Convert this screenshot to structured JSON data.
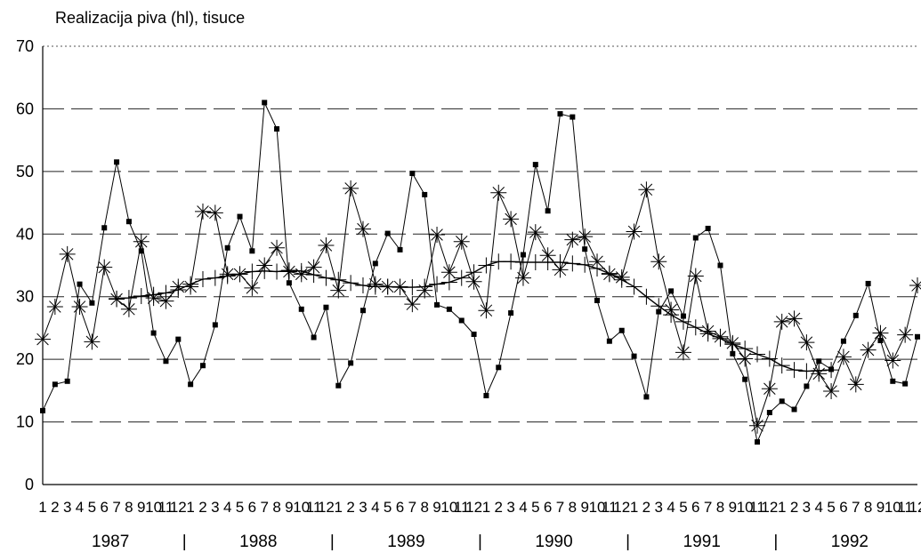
{
  "chart_data": {
    "type": "line",
    "title": "Realizacija piva (hl), tisuce",
    "xlabel": "",
    "ylabel": "",
    "ylim": [
      0,
      70
    ],
    "yticks": [
      0,
      10,
      20,
      30,
      40,
      50,
      60,
      70
    ],
    "grid": "horizontal-dashed",
    "legend": "none",
    "month_labels": [
      "1",
      "2",
      "3",
      "4",
      "5",
      "6",
      "7",
      "8",
      "9",
      "10",
      "11",
      "12"
    ],
    "years": [
      "1987",
      "1988",
      "1989",
      "1990",
      "1991",
      "1992"
    ],
    "year_separator": "|",
    "series": [
      {
        "marker": "square",
        "color": "#000000",
        "values": [
          11.8,
          16,
          16.5,
          32,
          29,
          41,
          51.5,
          42,
          37.3,
          24.2,
          19.7,
          23.2,
          16,
          19,
          25.5,
          37.8,
          42.8,
          37.3,
          61,
          56.8,
          32.2,
          28,
          23.5,
          28.3,
          15.8,
          19.4,
          27.8,
          35.3,
          40.1,
          37.5,
          49.7,
          46.3,
          28.7,
          28,
          26.2,
          24,
          14.2,
          18.7,
          27.4,
          36.7,
          51.1,
          43.7,
          59.2,
          58.7,
          37.6,
          29.4,
          22.9,
          24.6,
          20.5,
          14,
          27.6,
          30.9,
          26.9,
          39.4,
          40.9,
          35,
          20.9,
          16.8,
          6.8,
          11.5,
          13.3,
          12,
          15.7,
          19.7,
          18.4,
          22.9,
          27,
          32.1,
          23,
          16.5,
          16.1,
          23.6
        ]
      },
      {
        "marker": "star",
        "color": "#000000",
        "values": [
          23.2,
          28.4,
          36.8,
          28.4,
          22.8,
          34.7,
          29.6,
          28,
          38.8,
          29.8,
          29.3,
          31.6,
          31.6,
          43.6,
          43.4,
          33.6,
          33.6,
          31.4,
          35,
          37.8,
          34,
          33.6,
          34.7,
          38.2,
          31,
          47.3,
          40.8,
          32,
          31.6,
          31.6,
          28.8,
          31,
          39.9,
          33.9,
          38.8,
          32.4,
          27.8,
          46.6,
          42.4,
          33,
          40.3,
          36.6,
          34.3,
          39.1,
          39.6,
          35.6,
          33.6,
          33.1,
          40.4,
          47.1,
          35.6,
          27.9,
          21.1,
          33.3,
          24.5,
          23.6,
          22.6,
          20.1,
          9.4,
          15.3,
          26,
          26.5,
          22.7,
          17.7,
          14.9,
          20.4,
          16,
          21.5,
          24.2,
          19.8,
          23.9,
          31.8
        ]
      },
      {
        "marker": "plus",
        "color": "#000000",
        "values": [
          null,
          null,
          null,
          null,
          null,
          null,
          29.7,
          29.8,
          30.1,
          30.3,
          30.6,
          31.1,
          32,
          32.8,
          33,
          33.3,
          33.6,
          34,
          34.1,
          34,
          34.2,
          34.1,
          33.5,
          33,
          32.7,
          32.2,
          31.8,
          31.6,
          31.6,
          31.5,
          31.5,
          31.6,
          32,
          32.3,
          33,
          33.9,
          35,
          35.6,
          35.6,
          35.5,
          35.5,
          35.5,
          35.5,
          35.3,
          35.1,
          34.5,
          33.7,
          32.7,
          31.6,
          30,
          28.5,
          27.1,
          26,
          25.1,
          24.1,
          23.3,
          22.4,
          21.7,
          20.8,
          20.1,
          19,
          18.3,
          18.1,
          18.2,
          18.3,
          null,
          null,
          null,
          null,
          null,
          null,
          null
        ]
      }
    ]
  }
}
